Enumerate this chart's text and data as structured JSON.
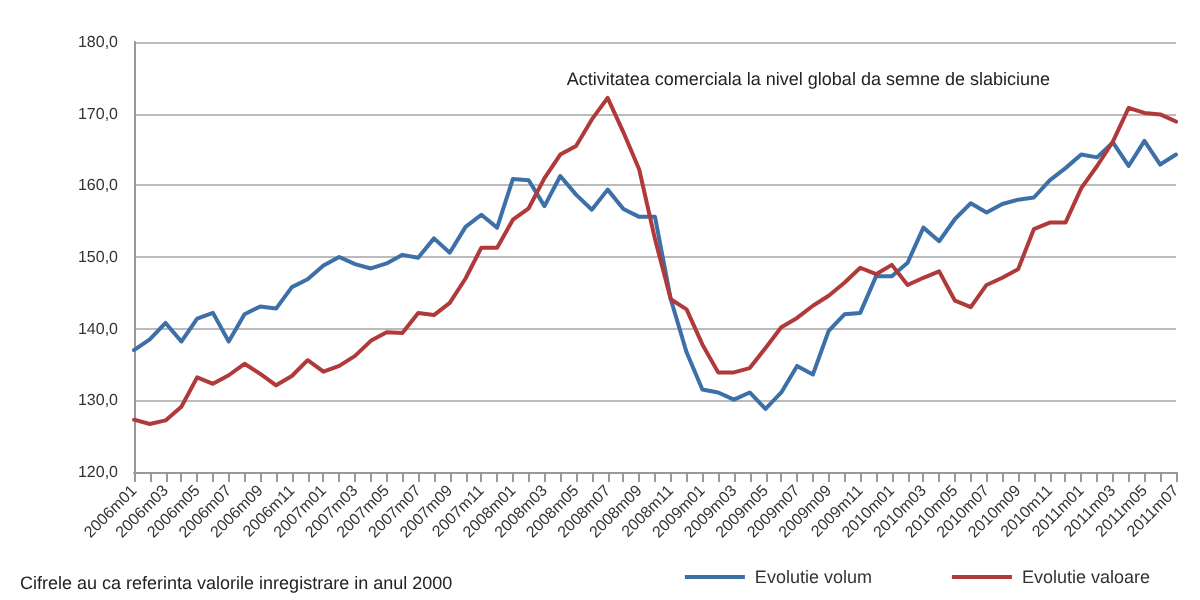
{
  "chart_data": {
    "type": "line",
    "title": "Activitatea comerciala la nivel global da semne de slabiciune",
    "annotations": [
      "Cifrele au ca referinta valorile inregistrare in anul 2000"
    ],
    "categories": [
      "2006m01",
      null,
      "2006m03",
      null,
      "2006m05",
      null,
      "2006m07",
      null,
      "2006m09",
      null,
      "2006m11",
      null,
      "2007m01",
      null,
      "2007m03",
      null,
      "2007m05",
      null,
      "2007m07",
      null,
      "2007m09",
      null,
      "2007m11",
      null,
      "2008m01",
      null,
      "2008m03",
      null,
      "2008m05",
      null,
      "2008m07",
      null,
      "2008m09",
      null,
      "2008m11",
      null,
      "2009m01",
      null,
      "2009m03",
      null,
      "2009m05",
      null,
      "2009m07",
      null,
      "2009m09",
      null,
      "2009m11",
      null,
      "2010m01",
      null,
      "2010m03",
      null,
      "2010m05",
      null,
      "2010m07",
      null,
      "2010m09",
      null,
      "2010m11",
      null,
      "2011m01",
      null,
      "2011m03",
      null,
      "2011m05",
      null,
      "2011m07"
    ],
    "series": [
      {
        "name": "Evolutie volum",
        "color": "#3d6fa8",
        "values": [
          137.0,
          138.5,
          140.8,
          138.2,
          141.4,
          142.2,
          138.2,
          142.0,
          143.1,
          142.8,
          145.8,
          146.9,
          148.8,
          150.0,
          149.0,
          148.4,
          149.1,
          150.3,
          149.9,
          152.6,
          150.6,
          154.2,
          155.9,
          154.1,
          160.9,
          160.7,
          157.1,
          161.3,
          158.7,
          156.6,
          159.4,
          156.7,
          155.6,
          155.6,
          144.1,
          136.7,
          131.5,
          131.1,
          130.1,
          131.1,
          128.8,
          131.1,
          134.8,
          133.6,
          139.7,
          142.0,
          142.2,
          147.3,
          147.3,
          149.2,
          154.1,
          152.2,
          155.3,
          157.5,
          156.2,
          157.4,
          158.0,
          158.3,
          160.7,
          162.4,
          164.3,
          163.9,
          166.0,
          162.7,
          166.2,
          162.9,
          164.3
        ]
      },
      {
        "name": "Evolutie valoare",
        "color": "#b03a3a",
        "values": [
          127.3,
          126.7,
          127.2,
          129.1,
          133.2,
          132.3,
          133.5,
          135.1,
          133.7,
          132.1,
          133.4,
          135.6,
          134.0,
          134.8,
          136.2,
          138.3,
          139.5,
          139.4,
          142.2,
          141.9,
          143.6,
          147.0,
          151.3,
          151.3,
          155.2,
          156.8,
          161.0,
          164.3,
          165.5,
          169.2,
          172.2,
          167.4,
          162.2,
          152.5,
          144.1,
          142.7,
          137.8,
          133.9,
          133.9,
          134.5,
          137.3,
          140.2,
          141.5,
          143.2,
          144.6,
          146.4,
          148.5,
          147.6,
          148.9,
          146.1,
          147.1,
          148.0,
          143.9,
          143.0,
          146.1,
          147.1,
          148.3,
          153.9,
          154.8,
          154.8,
          159.6,
          162.7,
          166.1,
          170.8,
          170.1,
          169.9,
          168.9
        ]
      }
    ],
    "ylim": [
      120,
      180
    ],
    "yticks": [
      {
        "value": 120,
        "label": "120,0"
      },
      {
        "value": 130,
        "label": "130,0"
      },
      {
        "value": 140,
        "label": "140,0"
      },
      {
        "value": 150,
        "label": "150,0"
      },
      {
        "value": 160,
        "label": "160,0"
      },
      {
        "value": 170,
        "label": "170,0"
      },
      {
        "value": 180,
        "label": "180,0"
      }
    ],
    "grid": "y",
    "legend": "bottom right",
    "marker": "none",
    "line_style": "solid"
  }
}
